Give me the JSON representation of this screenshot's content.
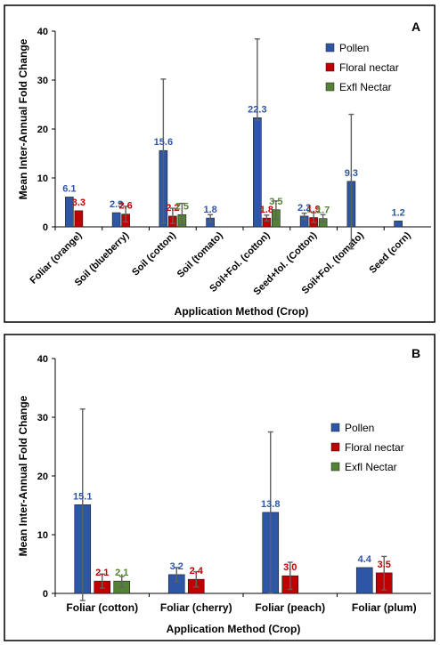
{
  "colors": {
    "pollen": "#2e56a6",
    "floral": "#c00000",
    "exfl": "#548235"
  },
  "chart_data": [
    {
      "type": "bar",
      "panel": "A",
      "xlabel": "Application Method (Crop)",
      "ylabel": "Mean Inter-Annual Fold Change",
      "ylim": [
        0,
        40
      ],
      "yticks": [
        0,
        10,
        20,
        30,
        40
      ],
      "grid": false,
      "legend_position": "top-right",
      "categories": [
        "Foliar (orange)",
        "Soil (blueberry)",
        "Soil (cotton)",
        "Soil (tomato)",
        "Soil+Fol. (cotton)",
        "Seed+fol. (Cotton)",
        "Soil+Fol. (tomato)",
        "Seed (corn)"
      ],
      "series": [
        {
          "name": "Pollen",
          "values": [
            6.1,
            2.9,
            15.6,
            1.8,
            22.3,
            2.2,
            9.3,
            1.2
          ],
          "error_high": [
            null,
            null,
            30.2,
            2.5,
            38.4,
            2.8,
            23.0,
            null
          ],
          "error_low": [
            null,
            null,
            0.8,
            1.0,
            21.8,
            1.6,
            -4.5,
            1.0
          ],
          "labels": [
            "6.1",
            "2.9",
            "15.6",
            "1.8",
            "22.3",
            "2.2",
            "9.3",
            "1.2"
          ]
        },
        {
          "name": "Floral nectar",
          "values": [
            3.3,
            2.6,
            2.2,
            null,
            1.8,
            1.9,
            null,
            null
          ],
          "error_high": [
            null,
            4.2,
            3.8,
            null,
            2.4,
            2.9,
            null,
            null
          ],
          "error_low": [
            null,
            1.0,
            0.7,
            null,
            1.2,
            0.9,
            null,
            null
          ],
          "labels": [
            "3.3",
            "2.6",
            "2.2",
            "",
            "1.8",
            "1.9",
            "",
            ""
          ]
        },
        {
          "name": "Exfl Nectar",
          "values": [
            null,
            null,
            2.5,
            null,
            3.5,
            1.7,
            null,
            null
          ],
          "error_high": [
            null,
            null,
            4.8,
            null,
            5.3,
            2.5,
            null,
            null
          ],
          "error_low": [
            null,
            null,
            0.4,
            null,
            1.5,
            1.0,
            null,
            null
          ],
          "labels": [
            "",
            "",
            "2.5",
            "",
            "3.5",
            "1.7",
            "",
            ""
          ]
        }
      ]
    },
    {
      "type": "bar",
      "panel": "B",
      "xlabel": "Application Method (Crop)",
      "ylabel": "Mean Inter-Annual Fold Change",
      "ylim": [
        0,
        40
      ],
      "yticks": [
        0,
        10,
        20,
        30,
        40
      ],
      "grid": false,
      "legend_position": "top-right",
      "categories": [
        "Foliar (cotton)",
        "Foliar (cherry)",
        "Foliar (peach)",
        "Foliar (plum)"
      ],
      "series": [
        {
          "name": "Pollen",
          "values": [
            15.1,
            3.2,
            13.8,
            4.4
          ],
          "error_high": [
            31.4,
            4.4,
            27.5,
            null
          ],
          "error_low": [
            -1.2,
            2.0,
            0.0,
            null
          ],
          "labels": [
            "15.1",
            "3.2",
            "13.8",
            "4.4"
          ]
        },
        {
          "name": "Floral nectar",
          "values": [
            2.1,
            2.4,
            3.0,
            3.5
          ],
          "error_high": [
            3.3,
            3.7,
            5.3,
            6.3
          ],
          "error_low": [
            0.9,
            1.1,
            0.7,
            0.6
          ],
          "labels": [
            "2.1",
            "2.4",
            "3.0",
            "3.5"
          ]
        },
        {
          "name": "Exfl Nectar",
          "values": [
            2.1,
            null,
            null,
            null
          ],
          "error_high": [
            2.9,
            null,
            null,
            null
          ],
          "error_low": [
            1.1,
            null,
            null,
            null
          ],
          "labels": [
            "2.1",
            "",
            "",
            ""
          ]
        }
      ]
    }
  ]
}
